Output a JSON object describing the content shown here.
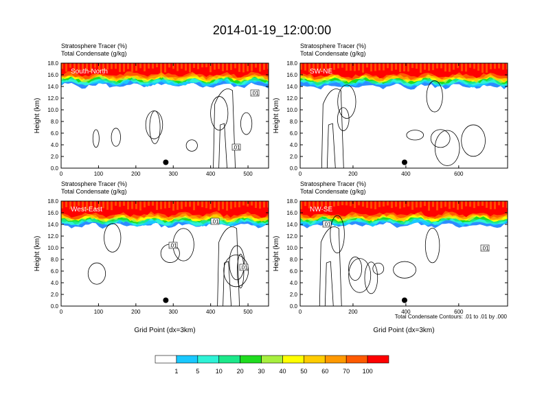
{
  "title": "2014-01-19_12:00:00",
  "colors": {
    "levels": [
      "#ffffff",
      "#2e8bff",
      "#19c8ff",
      "#2ef2d6",
      "#1ce88a",
      "#1fdc1f",
      "#a7ef3e",
      "#ffff00",
      "#ffcc00",
      "#ff9900",
      "#ff5a00",
      "#ff0000"
    ],
    "contour": "#000000",
    "marker": "#000000"
  },
  "colorbar": {
    "labels": [
      "1",
      "5",
      "10",
      "20",
      "30",
      "40",
      "50",
      "60",
      "70",
      "100"
    ]
  },
  "contour_note": "Total Condensate Contours: .01 to .01 by .000",
  "chart_data": [
    {
      "type": "heatmap",
      "name": "South-North",
      "subtitle1": "Stratosphere Tracer   (%)",
      "subtitle2": "Total Condensate   (g/kg)",
      "label": "South-North",
      "ylabel": "Height (km)",
      "xlabel": "",
      "xlim": [
        0,
        555
      ],
      "ylim": [
        0,
        18
      ],
      "xticks": [
        0,
        100,
        200,
        300,
        400,
        500
      ],
      "yticks": [
        "0.0",
        "2.0",
        "4.0",
        "6.0",
        "8.0",
        "10.0",
        "12.0",
        "14.0",
        "16.0",
        "18.0"
      ],
      "tracer_top_km": 18,
      "tracer_base_km": 15.2,
      "contour_labels": [
        ".01",
        ".01"
      ],
      "marker": {
        "x": 280,
        "y": 1.0
      }
    },
    {
      "type": "heatmap",
      "name": "SW-NE",
      "subtitle1": "Stratosphere Tracer   (%)",
      "subtitle2": "Total Condensate   (g/kg)",
      "label": "SW-NE",
      "ylabel": "Height (km)",
      "xlabel": "",
      "xlim": [
        0,
        785
      ],
      "ylim": [
        0,
        18
      ],
      "xticks": [
        0,
        200,
        400,
        600
      ],
      "yticks": [
        "0.0",
        "2.0",
        "4.0",
        "6.0",
        "8.0",
        "10.0",
        "12.0",
        "14.0",
        "16.0",
        "18.0"
      ],
      "tracer_top_km": 18,
      "tracer_base_km": 14.8,
      "contour_labels": [],
      "marker": {
        "x": 395,
        "y": 1.0
      }
    },
    {
      "type": "heatmap",
      "name": "West-East",
      "subtitle1": "Stratosphere Tracer   (%)",
      "subtitle2": "Total Condensate   (g/kg)",
      "label": "West-East",
      "ylabel": "Height (km)",
      "xlabel": "Grid Point (dx=3km)",
      "xlim": [
        0,
        555
      ],
      "ylim": [
        0,
        18
      ],
      "xticks": [
        0,
        100,
        200,
        300,
        400,
        500
      ],
      "yticks": [
        "0.0",
        "2.0",
        "4.0",
        "6.0",
        "8.0",
        "10.0",
        "12.0",
        "14.0",
        "16.0",
        "18.0"
      ],
      "tracer_top_km": 18,
      "tracer_base_km": 14.0,
      "contour_labels": [
        ".01",
        ".01",
        ".01"
      ],
      "marker": {
        "x": 280,
        "y": 1.0
      }
    },
    {
      "type": "heatmap",
      "name": "NW-SE",
      "subtitle1": "Stratosphere Tracer   (%)",
      "subtitle2": "Total Condensate   (g/kg)",
      "label": "NW-SE",
      "ylabel": "Height (km)",
      "xlabel": "Grid Point (dx=3km)",
      "xlim": [
        0,
        785
      ],
      "ylim": [
        0,
        18
      ],
      "xticks": [
        0,
        200,
        400,
        600
      ],
      "yticks": [
        "0.0",
        "2.0",
        "4.0",
        "6.0",
        "8.0",
        "10.0",
        "12.0",
        "14.0",
        "16.0",
        "18.0"
      ],
      "tracer_top_km": 18,
      "tracer_base_km": 14.2,
      "contour_labels": [
        ".01",
        ".01"
      ],
      "marker": {
        "x": 395,
        "y": 1.0
      }
    }
  ]
}
